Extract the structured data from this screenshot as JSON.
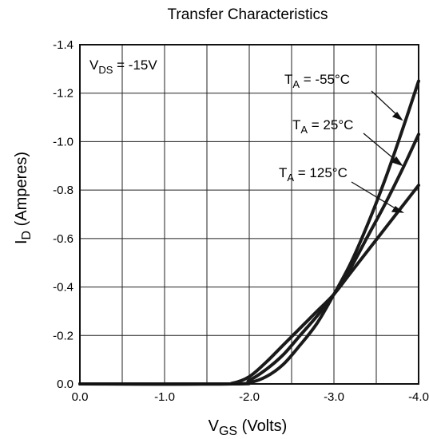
{
  "chart_data": {
    "type": "line",
    "title": "Transfer Characteristics",
    "xlabel": {
      "main": "V",
      "sub": "GS",
      "rest": " (Volts)"
    },
    "ylabel": {
      "main": "I",
      "sub": "D",
      "rest": " (Amperes)"
    },
    "x_ticks": [
      "0.0",
      "-1.0",
      "-2.0",
      "-3.0",
      "-4.0"
    ],
    "y_ticks": [
      "0.0",
      "-0.2",
      "-0.4",
      "-0.6",
      "-0.8",
      "-1.0",
      "-1.2",
      "-1.4"
    ],
    "xlim": [
      0,
      -4.0
    ],
    "ylim": [
      0,
      -1.4
    ],
    "grid": true,
    "condition": {
      "main": "V",
      "sub": "DS",
      "rest": " = -15V"
    },
    "series": [
      {
        "name": {
          "main": "T",
          "sub": "A",
          "rest": " = -55°C"
        },
        "points": [
          [
            0,
            0
          ],
          [
            -1.8,
            0
          ],
          [
            -2.0,
            -0.005
          ],
          [
            -2.2,
            -0.03
          ],
          [
            -2.4,
            -0.08
          ],
          [
            -2.6,
            -0.16
          ],
          [
            -2.8,
            -0.25
          ],
          [
            -3.0,
            -0.37
          ],
          [
            -3.2,
            -0.5
          ],
          [
            -3.4,
            -0.66
          ],
          [
            -3.6,
            -0.84
          ],
          [
            -3.8,
            -1.04
          ],
          [
            -4.0,
            -1.25
          ]
        ]
      },
      {
        "name": {
          "main": "T",
          "sub": "A",
          "rest": " = 25°C"
        },
        "points": [
          [
            0,
            0
          ],
          [
            -1.8,
            0
          ],
          [
            -2.0,
            -0.015
          ],
          [
            -2.2,
            -0.06
          ],
          [
            -2.4,
            -0.12
          ],
          [
            -2.6,
            -0.2
          ],
          [
            -2.8,
            -0.28
          ],
          [
            -3.0,
            -0.37
          ],
          [
            -3.2,
            -0.48
          ],
          [
            -3.4,
            -0.61
          ],
          [
            -3.6,
            -0.74
          ],
          [
            -3.8,
            -0.88
          ],
          [
            -4.0,
            -1.03
          ]
        ]
      },
      {
        "name": {
          "main": "T",
          "sub": "A",
          "rest": " = 125°C"
        },
        "points": [
          [
            0,
            0
          ],
          [
            -1.6,
            0
          ],
          [
            -1.8,
            -0.003
          ],
          [
            -2.0,
            -0.03
          ],
          [
            -2.2,
            -0.09
          ],
          [
            -2.4,
            -0.16
          ],
          [
            -2.6,
            -0.23
          ],
          [
            -2.8,
            -0.3
          ],
          [
            -3.0,
            -0.37
          ],
          [
            -3.2,
            -0.46
          ],
          [
            -3.4,
            -0.55
          ],
          [
            -3.6,
            -0.64
          ],
          [
            -3.8,
            -0.73
          ],
          [
            -4.0,
            -0.82
          ]
        ]
      }
    ]
  }
}
